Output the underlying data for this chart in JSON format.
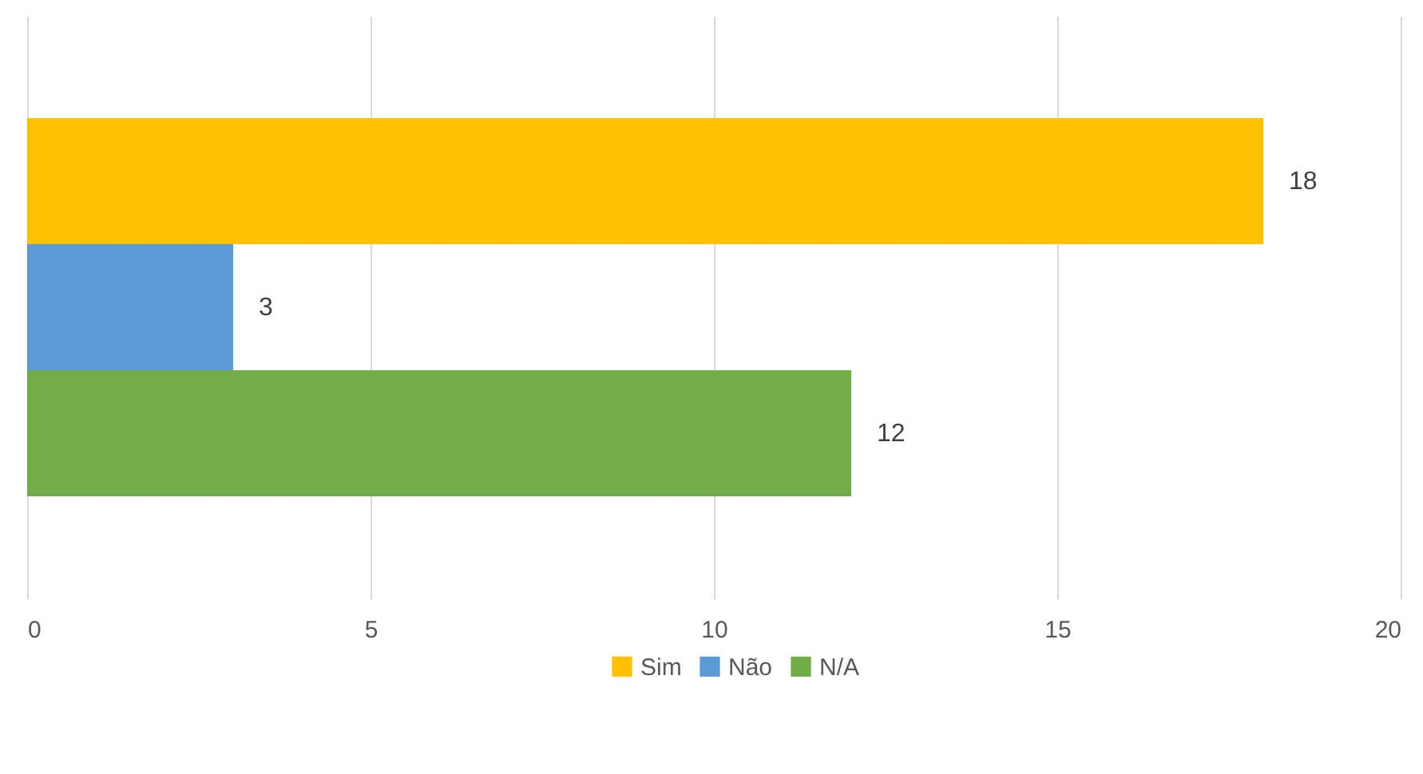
{
  "chart_data": {
    "type": "bar",
    "orientation": "horizontal",
    "categories": [
      null
    ],
    "series": [
      {
        "name": "Sim",
        "color": "#ffc000",
        "values": [
          18
        ]
      },
      {
        "name": "Não",
        "color": "#5b9bd5",
        "values": [
          3
        ]
      },
      {
        "name": "N/A",
        "color": "#70ad47",
        "values": [
          12
        ]
      }
    ],
    "xlim": [
      0,
      20
    ],
    "xticks": [
      0,
      5,
      10,
      15,
      20
    ],
    "grid": "x",
    "legend": "bottom",
    "data_labels": true
  }
}
